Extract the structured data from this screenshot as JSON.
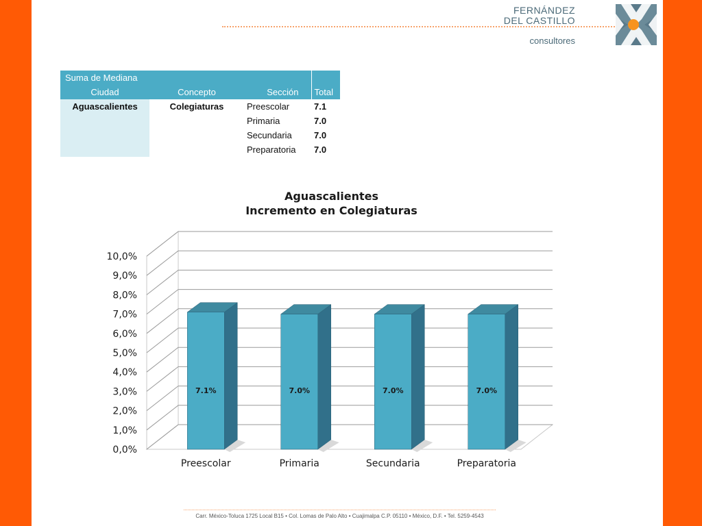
{
  "brand": {
    "line1": "FERNÁNDEZ",
    "line2": "DEL CASTILLO",
    "sub": "consultores",
    "logo_icon": "fdc-x-logo-icon",
    "colors": {
      "gray": "#4b6a78",
      "orange": "#f7931e",
      "frame": "#ff5a05"
    }
  },
  "pivot": {
    "header_top": "Suma de Mediana",
    "columns": [
      "Ciudad",
      "Concepto",
      "Sección",
      "Total"
    ],
    "ciudad": "Aguascalientes",
    "concepto": "Colegiaturas",
    "rows": [
      {
        "seccion": "Preescolar",
        "total": "7.1"
      },
      {
        "seccion": "Primaria",
        "total": "7.0"
      },
      {
        "seccion": "Secundaria",
        "total": "7.0"
      },
      {
        "seccion": "Preparatoria",
        "total": "7.0"
      }
    ]
  },
  "chart_data": {
    "type": "bar",
    "title": "Aguascalientes",
    "subtitle": "Incremento en Colegiaturas",
    "categories": [
      "Preescolar",
      "Primaria",
      "Secundaria",
      "Preparatoria"
    ],
    "values": [
      7.1,
      7.0,
      7.0,
      7.0
    ],
    "data_labels": [
      "7.1%",
      "7.0%",
      "7.0%",
      "7.0%"
    ],
    "y_ticks": [
      "0,0%",
      "1,0%",
      "2,0%",
      "3,0%",
      "4,0%",
      "5,0%",
      "6,0%",
      "7,0%",
      "8,0%",
      "9,0%",
      "10,0%"
    ],
    "ylim": [
      0,
      10
    ],
    "grid": true,
    "style": "3d",
    "colors": {
      "front": "#4bacc6",
      "side": "#31708a",
      "top": "#3f8aa0"
    }
  },
  "footer": "Carr. México-Toluca 1725 Local B15 • Col. Lomas de Palo Alto • Cuajimalpa C.P. 05110 • México, D.F. • Tel. 5259-4543"
}
